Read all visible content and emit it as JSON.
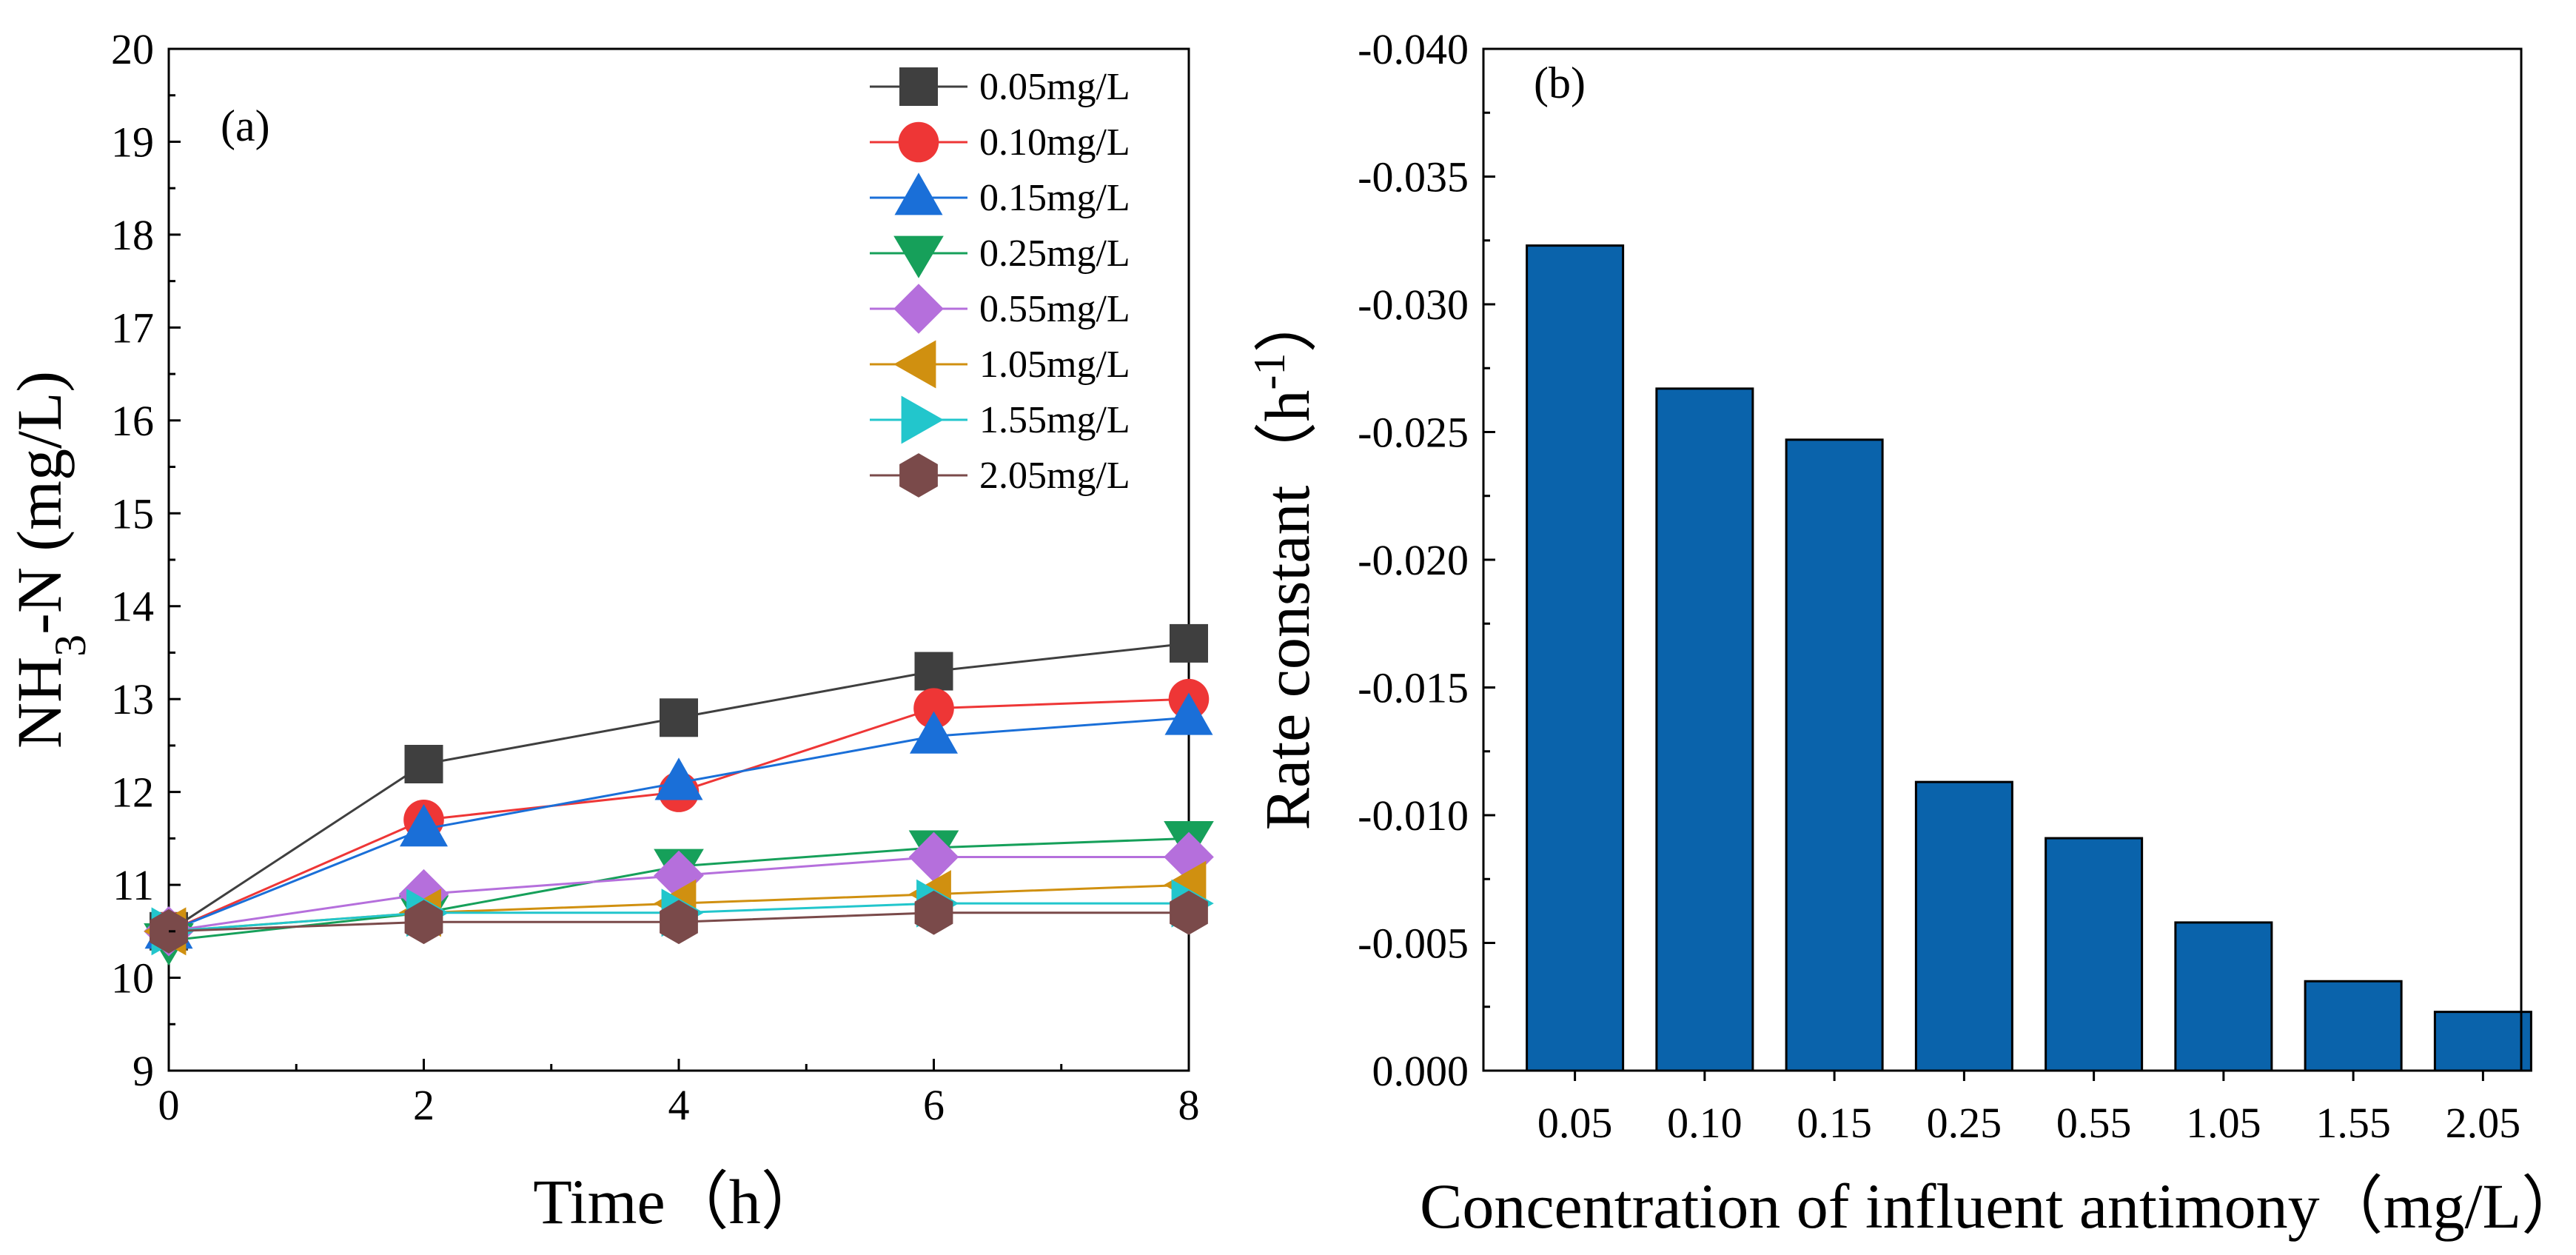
{
  "chart_data": [
    {
      "panel_label": "(a)",
      "type": "line",
      "xlabel": "Time（h）",
      "ylabel_parts": {
        "main": "NH",
        "sub": "3",
        "rest": "-N (mg/L)"
      },
      "x": [
        0,
        2,
        4,
        6,
        8
      ],
      "xlim": [
        0,
        8
      ],
      "ylim": [
        9,
        20
      ],
      "xticks": [
        "0",
        "2",
        "4",
        "6",
        "8"
      ],
      "yticks": [
        "9",
        "10",
        "11",
        "12",
        "13",
        "14",
        "15",
        "16",
        "17",
        "18",
        "19",
        "20"
      ],
      "legend_position": "top-right",
      "series": [
        {
          "name": "0.05mg/L",
          "color": "#3f3f3f",
          "marker": "square",
          "values": [
            10.5,
            12.3,
            12.8,
            13.3,
            13.6
          ]
        },
        {
          "name": "0.10mg/L",
          "color": "#ee3636",
          "marker": "circle",
          "values": [
            10.5,
            11.7,
            12.0,
            12.9,
            13.0
          ]
        },
        {
          "name": "0.15mg/L",
          "color": "#1a6fd8",
          "marker": "triangle-up",
          "values": [
            10.5,
            11.6,
            12.1,
            12.6,
            12.8
          ]
        },
        {
          "name": "0.25mg/L",
          "color": "#16a05a",
          "marker": "triangle-down",
          "values": [
            10.4,
            10.7,
            11.2,
            11.4,
            11.5
          ]
        },
        {
          "name": "0.55mg/L",
          "color": "#b56fdc",
          "marker": "diamond",
          "values": [
            10.5,
            10.9,
            11.1,
            11.3,
            11.3
          ]
        },
        {
          "name": "1.05mg/L",
          "color": "#d09010",
          "marker": "triangle-left",
          "values": [
            10.5,
            10.7,
            10.8,
            10.9,
            11.0
          ]
        },
        {
          "name": "1.55mg/L",
          "color": "#22c6cc",
          "marker": "triangle-right",
          "values": [
            10.5,
            10.7,
            10.7,
            10.8,
            10.8
          ]
        },
        {
          "name": "2.05mg/L",
          "color": "#7a4a4a",
          "marker": "hexagon",
          "values": [
            10.5,
            10.6,
            10.6,
            10.7,
            10.7
          ]
        }
      ]
    },
    {
      "panel_label": "(b)",
      "type": "bar",
      "xlabel": "Concentration of influent antimony（mg/L）",
      "ylabel_parts": {
        "main": "Rate constant（h",
        "sup": "-1",
        "rest": "）"
      },
      "categories": [
        "0.05",
        "0.10",
        "0.15",
        "0.25",
        "0.55",
        "1.05",
        "1.55",
        "2.05"
      ],
      "values": [
        -0.0323,
        -0.0267,
        -0.0247,
        -0.0113,
        -0.0091,
        -0.0058,
        -0.0035,
        -0.0023
      ],
      "ylim": [
        0.0,
        -0.04
      ],
      "yticks": [
        "0.000",
        "-0.005",
        "-0.010",
        "-0.015",
        "-0.020",
        "-0.025",
        "-0.030",
        "-0.035",
        "-0.040"
      ],
      "bar_color": "#0a63ab"
    }
  ]
}
